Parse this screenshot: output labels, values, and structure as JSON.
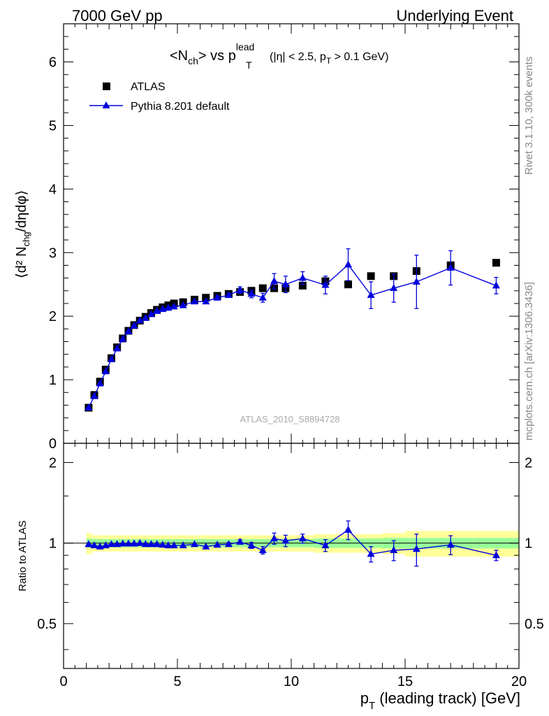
{
  "header": {
    "left": "7000 GeV pp",
    "right": "Underlying Event"
  },
  "side": {
    "rivet": "Rivet 3.1.10,  300k events",
    "mcplots": "mcplots.cern.ch [arXiv:1306.3436]"
  },
  "plot_title": {
    "main": "<N",
    "main_sub": "ch",
    "main_mid": "> vs p",
    "main_sup": "lead",
    "main_sub2": "T",
    "cuts_a": "(|η| < 2.5, p",
    "cuts_sub": "T",
    "cuts_b": " > 0.1 GeV)"
  },
  "analysis_id": "ATLAS_2010_S8894728",
  "axes": {
    "ylabel_top": "⟨d² N",
    "ylabel_top_sub": "chg",
    "ylabel_top_end": "/dηdφ⟩",
    "ylabel_bottom": "Ratio to ATLAS",
    "xlabel": "p",
    "xlabel_sub": "T",
    "xlabel_rest": " (leading track) [GeV]"
  },
  "colors": {
    "data": "#000000",
    "mc": "#0000dd",
    "band_inner": "#99ff99",
    "band_outer": "#ffff99"
  },
  "chart_data": [
    {
      "type": "scatter",
      "panel": "main",
      "xlim": [
        0,
        20
      ],
      "ylim": [
        0,
        6.6
      ],
      "x_ticks": [
        0,
        5,
        10,
        15,
        20
      ],
      "x_tick_labels": [
        "0",
        "5",
        "10",
        "15",
        "20"
      ],
      "y_ticks": [
        0,
        1,
        2,
        3,
        4,
        5,
        6
      ],
      "y_tick_labels": [
        "0",
        "1",
        "2",
        "3",
        "4",
        "5",
        "6"
      ],
      "legend_position": "top-left",
      "series": [
        {
          "name": "ATLAS",
          "marker": "square",
          "x": [
            1.1,
            1.35,
            1.6,
            1.85,
            2.1,
            2.35,
            2.6,
            2.85,
            3.1,
            3.35,
            3.6,
            3.85,
            4.1,
            4.35,
            4.6,
            4.85,
            5.25,
            5.75,
            6.25,
            6.75,
            7.25,
            7.75,
            8.25,
            8.75,
            9.25,
            9.75,
            10.5,
            11.5,
            12.5,
            13.5,
            14.5,
            15.5,
            17.0,
            19.0
          ],
          "y": [
            0.56,
            0.76,
            0.97,
            1.16,
            1.34,
            1.51,
            1.65,
            1.77,
            1.86,
            1.93,
            1.99,
            2.05,
            2.1,
            2.14,
            2.17,
            2.2,
            2.22,
            2.26,
            2.29,
            2.32,
            2.35,
            2.38,
            2.4,
            2.44,
            2.44,
            2.44,
            2.48,
            2.55,
            2.5,
            2.63,
            2.63,
            2.71,
            2.8,
            2.84
          ]
        },
        {
          "name": "Pythia 8.201 default",
          "marker": "triangle",
          "x": [
            1.1,
            1.35,
            1.6,
            1.85,
            2.1,
            2.35,
            2.6,
            2.85,
            3.1,
            3.35,
            3.6,
            3.85,
            4.1,
            4.35,
            4.6,
            4.85,
            5.25,
            5.75,
            6.25,
            6.75,
            7.25,
            7.75,
            8.25,
            8.75,
            9.25,
            9.75,
            10.5,
            11.5,
            12.5,
            13.5,
            14.5,
            15.5,
            17.0,
            19.0
          ],
          "y": [
            0.56,
            0.74,
            0.94,
            1.13,
            1.32,
            1.49,
            1.64,
            1.76,
            1.85,
            1.93,
            1.97,
            2.03,
            2.08,
            2.11,
            2.13,
            2.15,
            2.17,
            2.23,
            2.23,
            2.29,
            2.33,
            2.41,
            2.35,
            2.29,
            2.55,
            2.5,
            2.6,
            2.49,
            2.81,
            2.33,
            2.44,
            2.54,
            2.76,
            2.48
          ],
          "yerr": [
            0.01,
            0.01,
            0.01,
            0.01,
            0.01,
            0.01,
            0.01,
            0.01,
            0.01,
            0.01,
            0.01,
            0.01,
            0.01,
            0.01,
            0.01,
            0.01,
            0.02,
            0.02,
            0.02,
            0.03,
            0.03,
            0.05,
            0.06,
            0.07,
            0.12,
            0.13,
            0.1,
            0.14,
            0.25,
            0.21,
            0.22,
            0.42,
            0.27,
            0.13
          ]
        }
      ]
    },
    {
      "type": "scatter",
      "panel": "ratio",
      "xlim": [
        0,
        20
      ],
      "ylim": [
        0.34,
        2.36
      ],
      "log_y": true,
      "y_ticks": [
        0.5,
        1,
        2
      ],
      "y_tick_labels": [
        "0.5",
        "1",
        "2"
      ],
      "band_x_edges": [
        1.0,
        1.25,
        1.5,
        1.75,
        2.0,
        2.25,
        2.5,
        2.75,
        3.0,
        3.25,
        3.5,
        3.75,
        4.0,
        4.25,
        4.5,
        4.75,
        5.0,
        5.5,
        6.0,
        6.5,
        7.0,
        7.5,
        8.0,
        8.5,
        9.0,
        9.5,
        10.0,
        11.0,
        12.0,
        13.0,
        14.0,
        15.0,
        16.0,
        18.0,
        20.0
      ],
      "band_inner": [
        0.04,
        0.035,
        0.035,
        0.035,
        0.035,
        0.035,
        0.035,
        0.035,
        0.035,
        0.035,
        0.035,
        0.035,
        0.035,
        0.035,
        0.035,
        0.035,
        0.035,
        0.035,
        0.035,
        0.035,
        0.035,
        0.035,
        0.035,
        0.035,
        0.035,
        0.035,
        0.035,
        0.04,
        0.04,
        0.04,
        0.045,
        0.045,
        0.045,
        0.045
      ],
      "band_outer": [
        0.09,
        0.07,
        0.07,
        0.07,
        0.07,
        0.07,
        0.07,
        0.07,
        0.07,
        0.07,
        0.07,
        0.07,
        0.07,
        0.07,
        0.07,
        0.07,
        0.07,
        0.07,
        0.07,
        0.07,
        0.07,
        0.07,
        0.07,
        0.07,
        0.07,
        0.07,
        0.07,
        0.08,
        0.08,
        0.08,
        0.09,
        0.11,
        0.11,
        0.11
      ],
      "series": [
        {
          "name": "Pythia 8.201 default",
          "marker": "triangle",
          "x": [
            1.1,
            1.35,
            1.6,
            1.85,
            2.1,
            2.35,
            2.6,
            2.85,
            3.1,
            3.35,
            3.6,
            3.85,
            4.1,
            4.35,
            4.6,
            4.85,
            5.25,
            5.75,
            6.25,
            6.75,
            7.25,
            7.75,
            8.25,
            8.75,
            9.25,
            9.75,
            10.5,
            11.5,
            12.5,
            13.5,
            14.5,
            15.5,
            17.0,
            19.0
          ],
          "y": [
            0.99,
            0.98,
            0.97,
            0.98,
            0.99,
            0.99,
            0.995,
            0.995,
            0.995,
            1.0,
            0.99,
            0.99,
            0.99,
            0.985,
            0.98,
            0.98,
            0.98,
            0.99,
            0.97,
            0.985,
            0.99,
            1.01,
            0.98,
            0.94,
            1.04,
            1.02,
            1.04,
            0.98,
            1.12,
            0.91,
            0.94,
            0.95,
            0.985,
            0.9
          ],
          "yerr": [
            0.01,
            0.01,
            0.01,
            0.01,
            0.01,
            0.01,
            0.01,
            0.01,
            0.01,
            0.01,
            0.01,
            0.01,
            0.01,
            0.01,
            0.01,
            0.01,
            0.01,
            0.01,
            0.01,
            0.01,
            0.015,
            0.02,
            0.025,
            0.03,
            0.05,
            0.05,
            0.04,
            0.05,
            0.09,
            0.06,
            0.08,
            0.13,
            0.08,
            0.04
          ]
        }
      ]
    }
  ]
}
